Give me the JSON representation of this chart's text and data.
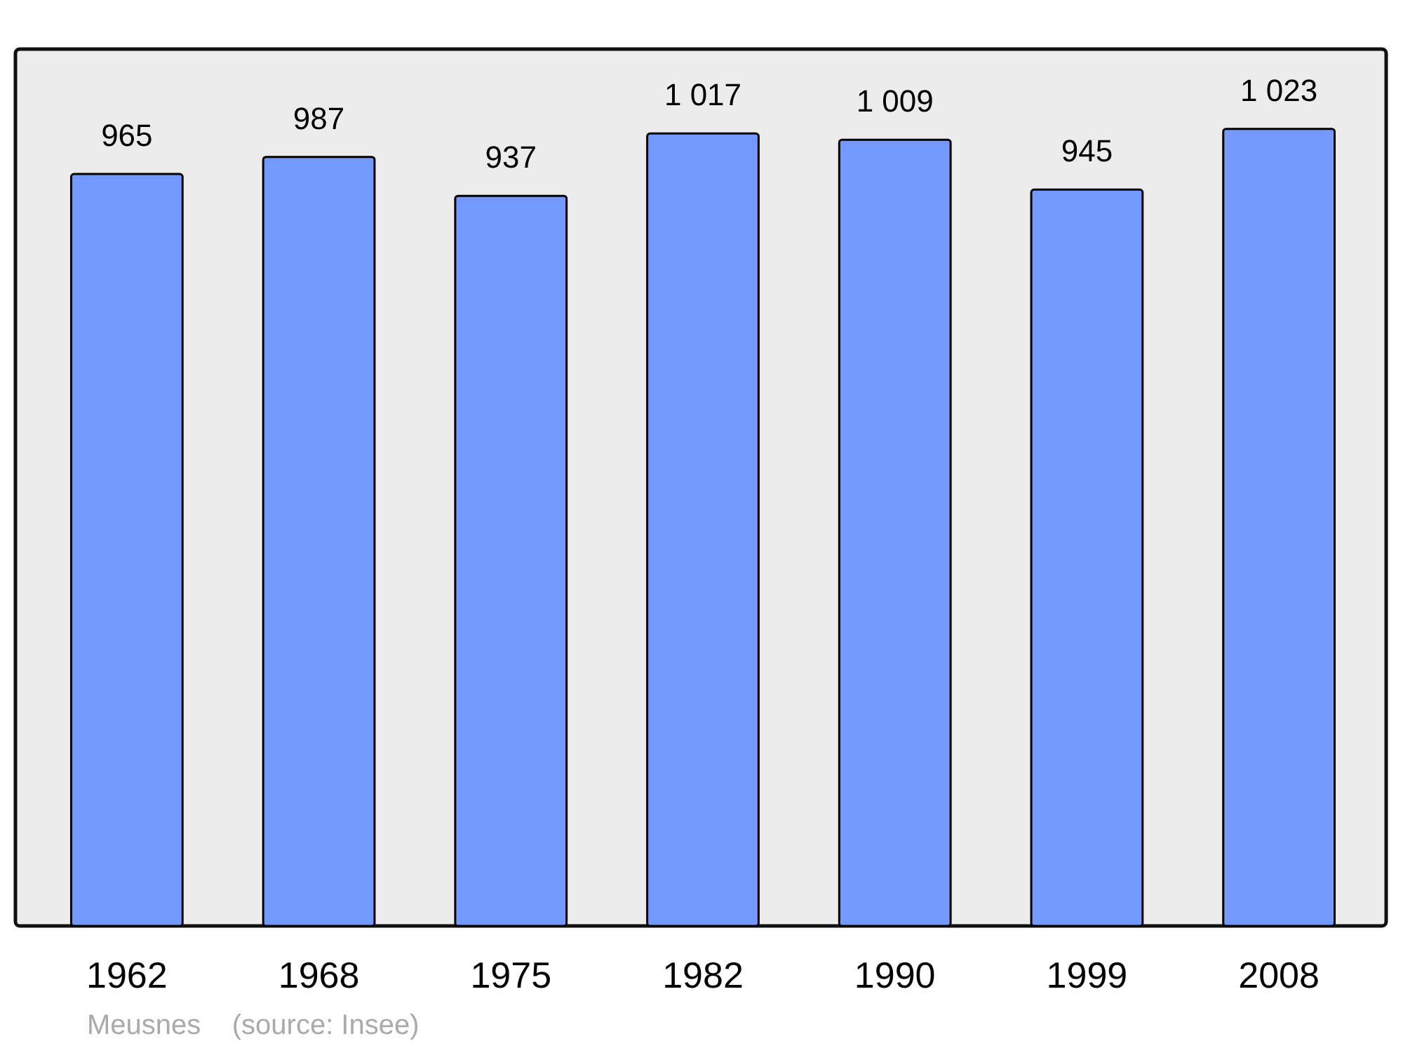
{
  "chart_data": {
    "type": "bar",
    "categories": [
      "1962",
      "1968",
      "1975",
      "1982",
      "1990",
      "1999",
      "2008"
    ],
    "values": [
      965,
      987,
      937,
      1017,
      1009,
      945,
      1023
    ],
    "value_labels": [
      "965",
      "987",
      "937",
      "1 017",
      "1 009",
      "945",
      "1 023"
    ],
    "color": "#7399ff",
    "annotations": [
      "Meusnes    (source: Insee)"
    ]
  }
}
